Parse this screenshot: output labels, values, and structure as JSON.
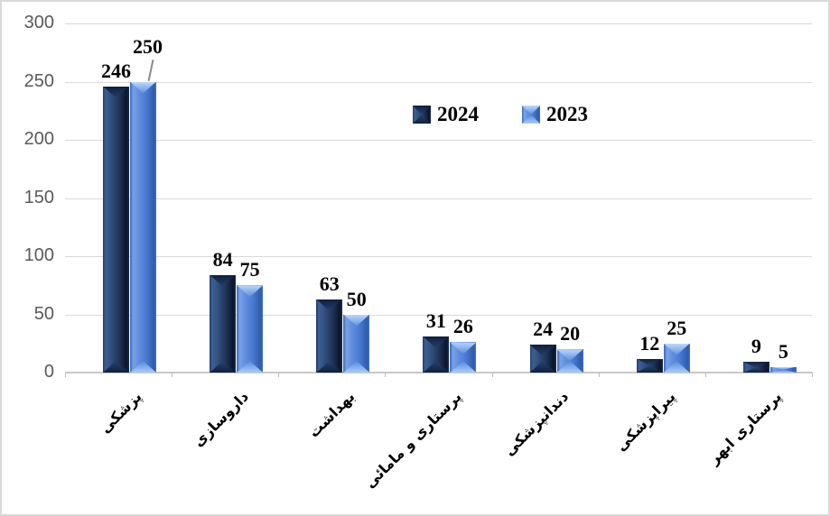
{
  "chart_data": {
    "type": "bar",
    "title": "",
    "xlabel": "",
    "ylabel": "",
    "categories": [
      "پزشکی",
      "داروسازی",
      "بهداشت",
      "پرستاری و مامائی",
      "دندانپزشکی",
      "پیراپزشکی",
      "پرستاری ابهر"
    ],
    "series": [
      {
        "name": "2024",
        "color": "#1F3864",
        "values": [
          246,
          84,
          63,
          31,
          24,
          12,
          9
        ]
      },
      {
        "name": "2023",
        "color": "#4472C4",
        "values": [
          250,
          75,
          50,
          26,
          20,
          25,
          5
        ]
      }
    ],
    "ylim": [
      0,
      300
    ],
    "yticks": [
      0,
      50,
      100,
      150,
      200,
      250,
      300
    ],
    "grid": true,
    "bar_style": "3d-bevel",
    "legend_position": "inside-top-center",
    "label_position": "outside-end",
    "label_callouts": [
      {
        "series": 1,
        "category_index": 0
      }
    ]
  }
}
